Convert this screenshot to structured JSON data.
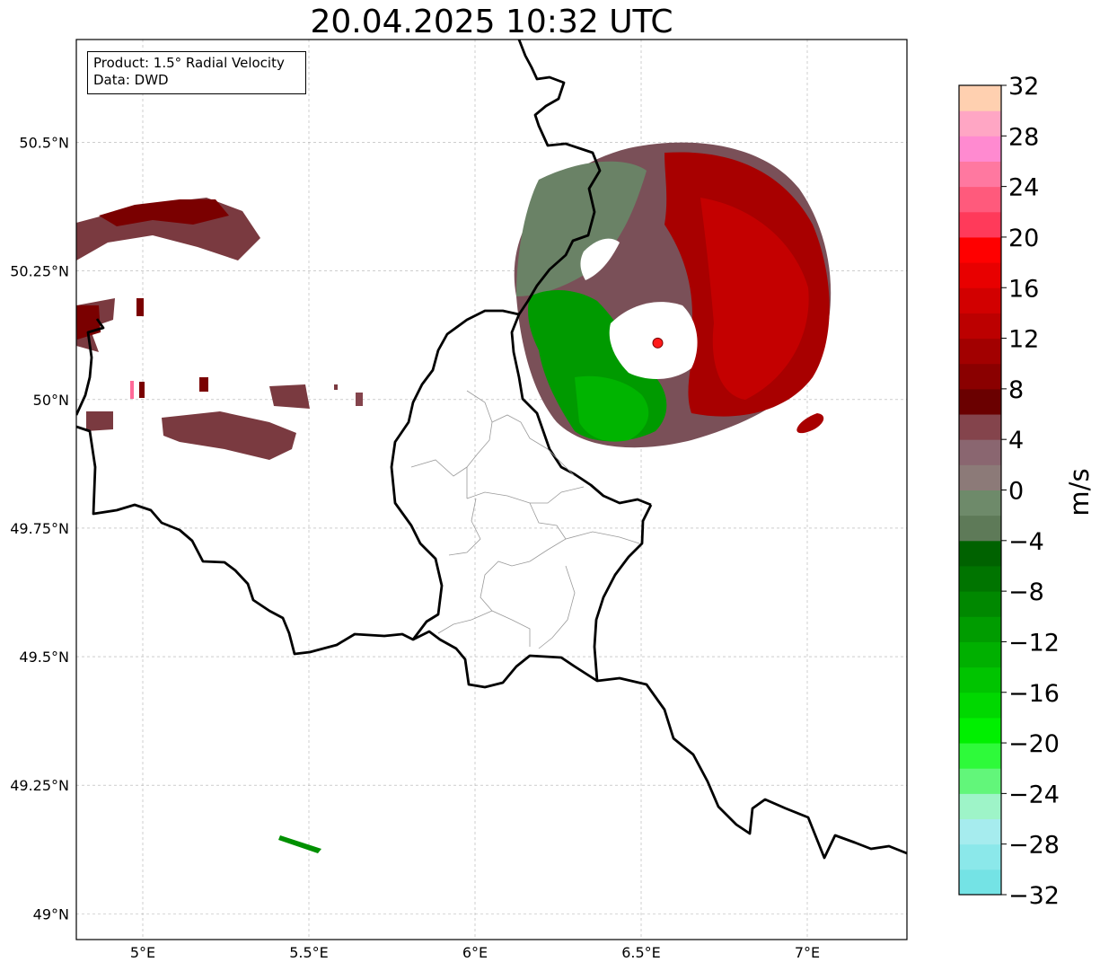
{
  "title": "20.04.2025 10:32 UTC",
  "info": {
    "product": "Product: 1.5° Radial Velocity",
    "data": "Data: DWD"
  },
  "axes": {
    "lon_range": [
      4.8,
      7.3
    ],
    "lat_range": [
      48.95,
      50.7
    ],
    "lon_ticks": [
      {
        "value": 5.0,
        "label": "5°E"
      },
      {
        "value": 5.5,
        "label": "5.5°E"
      },
      {
        "value": 6.0,
        "label": "6°E"
      },
      {
        "value": 6.5,
        "label": "6.5°E"
      },
      {
        "value": 7.0,
        "label": "7°E"
      }
    ],
    "lat_ticks": [
      {
        "value": 50.5,
        "label": "50.5°N"
      },
      {
        "value": 50.25,
        "label": "50.25°N"
      },
      {
        "value": 50.0,
        "label": "50°N"
      },
      {
        "value": 49.75,
        "label": "49.75°N"
      },
      {
        "value": 49.5,
        "label": "49.5°N"
      },
      {
        "value": 49.25,
        "label": "49.25°N"
      },
      {
        "value": 49.0,
        "label": "49°N"
      }
    ],
    "grid": true
  },
  "radar_site": {
    "lon": 6.55,
    "lat": 50.11,
    "color": "#ff1a1a"
  },
  "colorbar": {
    "unit": "m/s",
    "min": -32,
    "max": 32,
    "ticks": [
      "32",
      "28",
      "24",
      "20",
      "16",
      "12",
      "8",
      "4",
      "0",
      "−4",
      "−8",
      "−12",
      "−16",
      "−20",
      "−24",
      "−28",
      "−32"
    ],
    "colors": [
      "#74e3e5",
      "#8be8ea",
      "#a6ecee",
      "#9ef4c8",
      "#62f67a",
      "#2efa3a",
      "#00f000",
      "#00d800",
      "#00c400",
      "#00b000",
      "#009c00",
      "#008800",
      "#007400",
      "#006200",
      "#5e7a58",
      "#6e8a6a",
      "#8c7a78",
      "#8a6670",
      "#84444c",
      "#6a0000",
      "#8a0000",
      "#a20000",
      "#bc0000",
      "#d20000",
      "#e80000",
      "#ff0000",
      "#ff3a5a",
      "#ff5a7c",
      "#ff78a0",
      "#ff8ad0",
      "#ffa6c4",
      "#ffd0b0"
    ]
  }
}
